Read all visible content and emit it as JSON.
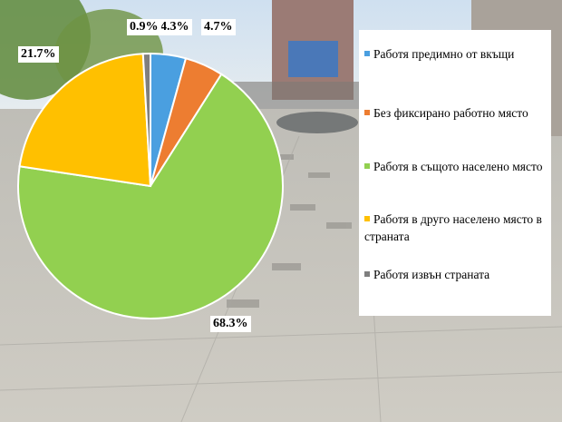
{
  "chart_data": {
    "type": "pie",
    "title": "",
    "slices": [
      {
        "label": "Работя предимно от вкъщи",
        "value": 4.3,
        "display": "4.3%",
        "color": "#4a9fe0"
      },
      {
        "label": "Без фиксирано работно място",
        "value": 4.7,
        "display": "4.7%",
        "color": "#ed7d31"
      },
      {
        "label": "Работя в същото населено място",
        "value": 68.3,
        "display": "68.3%",
        "color": "#92d050"
      },
      {
        "label": "Работя в друго населено място в страната",
        "value": 21.7,
        "display": "21.7%",
        "color": "#ffc000"
      },
      {
        "label": "Работя извън страната",
        "value": 0.9,
        "display": "0.9%",
        "color": "#7f7f7f"
      }
    ],
    "legend_position": "right"
  }
}
